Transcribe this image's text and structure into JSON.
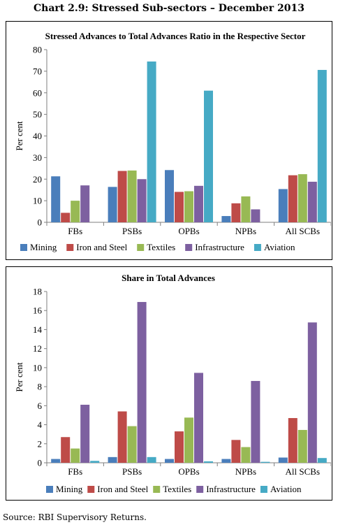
{
  "page_title": "Chart 2.9: Stressed Sub-sectors – December 2013",
  "source_label": "Source:",
  "source_text": "RBI Supervisory Returns.",
  "colors": {
    "Mining": "#4a7ebb",
    "Iron and Steel": "#be4b48",
    "Textiles": "#98b954",
    "Infrastructure": "#7d60a0",
    "Aviation": "#46aac5"
  },
  "chart_data": [
    {
      "type": "bar",
      "title": "Stressed Advances to Total Advances Ratio in the Respective Sector",
      "ylabel": "Per cent",
      "ylim": [
        0,
        80
      ],
      "yticks": [
        0,
        10,
        20,
        30,
        40,
        50,
        60,
        70,
        80
      ],
      "categories": [
        "FBs",
        "PSBs",
        "OPBs",
        "NPBs",
        "All SCBs"
      ],
      "legend_position": "bottom",
      "series": [
        {
          "name": "Mining",
          "values": [
            21.3,
            16.4,
            24.2,
            2.9,
            15.4
          ]
        },
        {
          "name": "Iron and Steel",
          "values": [
            4.4,
            23.8,
            14.1,
            8.8,
            21.8
          ]
        },
        {
          "name": "Textiles",
          "values": [
            10.0,
            24.0,
            14.4,
            12.0,
            22.3
          ]
        },
        {
          "name": "Infrastructure",
          "values": [
            17.1,
            20.0,
            16.9,
            6.0,
            18.8
          ]
        },
        {
          "name": "Aviation",
          "values": [
            0,
            74.5,
            61.0,
            0,
            70.6
          ]
        }
      ]
    },
    {
      "type": "bar",
      "title": "Share in Total Advances",
      "ylabel": "Per cent",
      "ylim": [
        0,
        18
      ],
      "yticks": [
        0,
        2,
        4,
        6,
        8,
        10,
        12,
        14,
        16,
        18
      ],
      "categories": [
        "FBs",
        "PSBs",
        "OPBs",
        "NPBs",
        "All SCBs"
      ],
      "legend_position": "bottom",
      "series": [
        {
          "name": "Mining",
          "values": [
            0.4,
            0.6,
            0.4,
            0.4,
            0.55
          ]
        },
        {
          "name": "Iron and Steel",
          "values": [
            2.7,
            5.4,
            3.3,
            2.4,
            4.7
          ]
        },
        {
          "name": "Textiles",
          "values": [
            1.5,
            3.85,
            4.75,
            1.65,
            3.45
          ]
        },
        {
          "name": "Infrastructure",
          "values": [
            6.1,
            16.9,
            9.45,
            8.6,
            14.75
          ]
        },
        {
          "name": "Aviation",
          "values": [
            0.2,
            0.6,
            0.15,
            0.1,
            0.5
          ]
        }
      ]
    }
  ]
}
